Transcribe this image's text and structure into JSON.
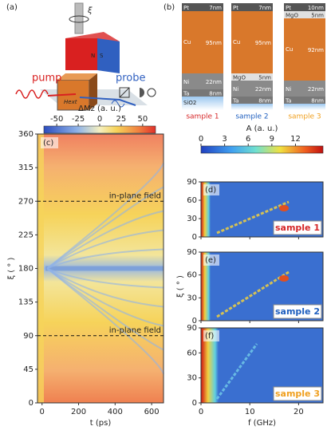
{
  "panel_a": {
    "label": "(a)",
    "axis_symbol": "ξ",
    "pump": "pump",
    "probe": "probe",
    "north": "N",
    "south": "S",
    "field": "Hext"
  },
  "panel_b": {
    "label": "(b)",
    "substrate": "SiO2",
    "samples": [
      {
        "name": "sample 1",
        "color": "#d62728",
        "layers": [
          {
            "material": "Pt",
            "thickness": "7nm"
          },
          {
            "material": "Cu",
            "thickness": "95nm"
          },
          {
            "material": "Ni",
            "thickness": "22nm"
          },
          {
            "material": "Ta",
            "thickness": "8nm"
          }
        ]
      },
      {
        "name": "sample 2",
        "color": "#1f5fbf",
        "layers": [
          {
            "material": "Pt",
            "thickness": "7nm"
          },
          {
            "material": "Cu",
            "thickness": "95nm"
          },
          {
            "material": "MgO",
            "thickness": "5nm"
          },
          {
            "material": "Ni",
            "thickness": "22nm"
          },
          {
            "material": "Ta",
            "thickness": "8nm"
          }
        ]
      },
      {
        "name": "sample 3",
        "color": "#f0a020",
        "layers": [
          {
            "material": "Pt",
            "thickness": "10nm"
          },
          {
            "material": "MgO",
            "thickness": "5nm"
          },
          {
            "material": "Cu",
            "thickness": "92nm"
          },
          {
            "material": "Ni",
            "thickness": "22nm"
          },
          {
            "material": "Ta",
            "thickness": "8nm"
          }
        ]
      }
    ]
  },
  "chart_data": [
    {
      "type": "heatmap",
      "label": "(c)",
      "colorbar_label": "ΔMz (a. u.)",
      "clim": [
        -65,
        65
      ],
      "cticks": [
        -50,
        -25,
        0,
        25,
        50
      ],
      "xlabel": "t (ps)",
      "ylabel": "ξ ( ° )",
      "xlim": [
        -25,
        665
      ],
      "xticks": [
        0,
        200,
        400,
        600
      ],
      "ylim": [
        0,
        360
      ],
      "yticks": [
        0,
        45,
        90,
        135,
        180,
        225,
        270,
        315,
        360
      ],
      "annotations": [
        {
          "text": "in-plane field",
          "y": 270
        },
        {
          "text": "in-plane field",
          "y": 90
        }
      ]
    },
    {
      "type": "heatmap",
      "colorbar_label": "A (a. u.)",
      "clim": [
        0,
        15.5
      ],
      "cticks": [
        0,
        3,
        6,
        9,
        12
      ],
      "xlabel": "f (GHz)",
      "ylabel": "ξ ( ° )",
      "xlim": [
        0,
        25
      ],
      "xticks": [
        0,
        10,
        20
      ],
      "ylim": [
        0,
        90
      ],
      "yticks": [
        0,
        30,
        60,
        90
      ],
      "panels": [
        {
          "label": "(d)",
          "sample": "sample 1",
          "color": "#d62728"
        },
        {
          "label": "(e)",
          "sample": "sample 2",
          "color": "#1f5fbf"
        },
        {
          "label": "(f)",
          "sample": "sample 3",
          "color": "#f0a020"
        }
      ]
    }
  ]
}
